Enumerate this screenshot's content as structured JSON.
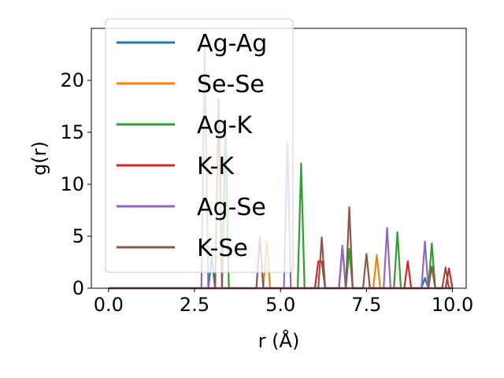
{
  "chart_data": {
    "type": "line",
    "xlabel": "r (Å)",
    "ylabel": "g(r)",
    "xlim": [
      -0.5,
      10.4
    ],
    "ylim": [
      0,
      25
    ],
    "xticks": [
      0.0,
      2.5,
      5.0,
      7.5,
      10.0
    ],
    "xtick_labels": [
      "0.0",
      "2.5",
      "5.0",
      "7.5",
      "10.0"
    ],
    "yticks": [
      0,
      5,
      10,
      15,
      20
    ],
    "ytick_labels": [
      "0",
      "5",
      "10",
      "15",
      "20"
    ],
    "grid": false,
    "legend_position": "upper-left",
    "series": [
      {
        "name": "Ag-Ag",
        "color": "#1f77b4",
        "x": [
          0,
          2.9,
          3.0,
          3.1,
          6.7,
          6.8,
          6.9,
          9.1,
          9.2,
          9.3,
          10.0
        ],
        "y": [
          0,
          0,
          3,
          0,
          0,
          4,
          0,
          0,
          1,
          0,
          0
        ]
      },
      {
        "name": "Se-Se",
        "color": "#ff7f0e",
        "x": [
          0,
          4.5,
          4.6,
          4.7,
          7.7,
          7.8,
          7.9,
          10.0
        ],
        "y": [
          0,
          0,
          4.5,
          0,
          0,
          3.2,
          0,
          0
        ]
      },
      {
        "name": "Ag-K",
        "color": "#2ca02c",
        "x": [
          0,
          3.3,
          3.4,
          3.5,
          5.5,
          5.6,
          5.7,
          6.9,
          7.0,
          7.1,
          8.3,
          8.4,
          8.5,
          9.3,
          9.4,
          9.5,
          10.0
        ],
        "y": [
          0,
          0,
          15,
          0,
          0,
          12,
          0,
          0,
          3.8,
          0,
          0,
          5.4,
          0,
          0,
          4.3,
          0,
          0
        ]
      },
      {
        "name": "K-K",
        "color": "#d62728",
        "x": [
          0,
          6.0,
          6.1,
          6.2,
          6.3,
          8.6,
          8.7,
          8.8,
          9.8,
          9.9,
          10.0
        ],
        "y": [
          0,
          0,
          2.6,
          2.6,
          0,
          0,
          2.6,
          0,
          0,
          1.9,
          0
        ]
      },
      {
        "name": "Ag-Se",
        "color": "#9467bd",
        "x": [
          0,
          2.7,
          2.8,
          2.9,
          5.1,
          5.2,
          5.3,
          6.7,
          6.8,
          6.9,
          8.0,
          8.1,
          8.2,
          9.1,
          9.2,
          9.3,
          10.0
        ],
        "y": [
          0,
          0,
          23.5,
          0,
          0,
          14,
          0,
          0,
          4.1,
          0,
          0,
          5.8,
          0,
          0,
          4.5,
          0,
          0
        ]
      },
      {
        "name": "K-Se",
        "color": "#8c564b",
        "x": [
          0,
          3.1,
          3.2,
          3.3,
          4.3,
          4.4,
          4.5,
          6.1,
          6.2,
          6.3,
          6.9,
          7.0,
          7.1,
          7.4,
          7.5,
          7.6,
          9.3,
          9.4,
          9.5,
          9.7,
          9.8,
          9.9,
          10.0
        ],
        "y": [
          0,
          0,
          18.2,
          0,
          0,
          4.9,
          0,
          0,
          4.9,
          0,
          0,
          7.8,
          0,
          0,
          3.3,
          0,
          0,
          2.1,
          0,
          0,
          2.0,
          0,
          0
        ]
      }
    ]
  }
}
